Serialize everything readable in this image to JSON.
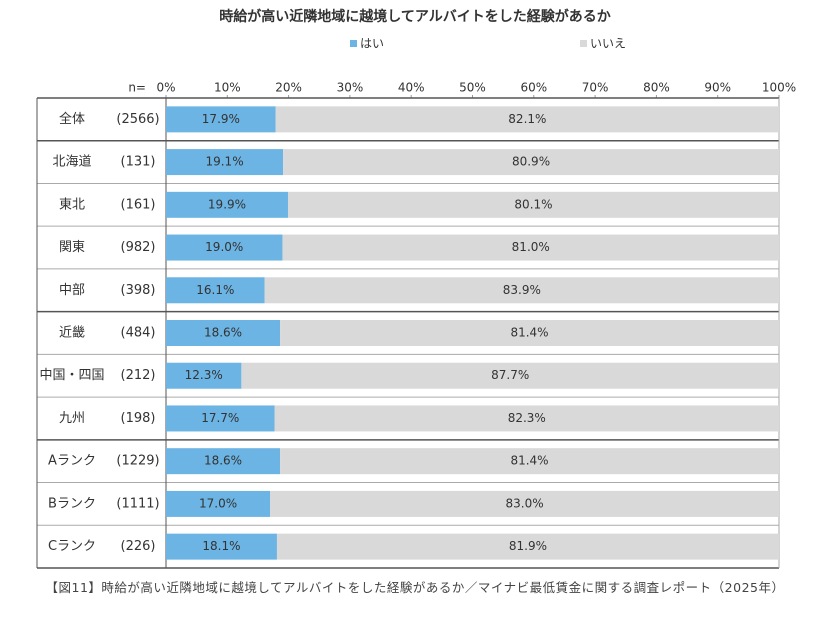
{
  "chart_data": {
    "type": "stacked-bar-horizontal",
    "title": "時給が高い近隣地域に越境してアルバイトをした経験があるか",
    "n_label": "n=",
    "categories": [
      "全体",
      "北海道",
      "東北",
      "関東",
      "中部",
      "近畿",
      "中国・四国",
      "九州",
      "Aランク",
      "Bランク",
      "Cランク"
    ],
    "sample_sizes": [
      "(2566)",
      "(131)",
      "(161)",
      "(982)",
      "(398)",
      "(484)",
      "(212)",
      "(198)",
      "(1229)",
      "(1111)",
      "(226)"
    ],
    "series": [
      {
        "name": "はい",
        "color": "#6cb4e4",
        "values": [
          17.9,
          19.1,
          19.9,
          19.0,
          16.1,
          18.6,
          12.3,
          17.7,
          18.6,
          17.0,
          18.1
        ],
        "value_labels": [
          "17.9%",
          "19.1%",
          "19.9%",
          "19.0%",
          "16.1%",
          "18.6%",
          "12.3%",
          "17.7%",
          "18.6%",
          "17.0%",
          "18.1%"
        ]
      },
      {
        "name": "いいえ",
        "color": "#d9d9d9",
        "values": [
          82.1,
          80.9,
          80.1,
          81.0,
          83.9,
          81.4,
          87.7,
          82.3,
          81.4,
          83.0,
          81.9
        ],
        "value_labels": [
          "82.1%",
          "80.9%",
          "80.1%",
          "81.0%",
          "83.9%",
          "81.4%",
          "87.7%",
          "82.3%",
          "81.4%",
          "83.0%",
          "81.9%"
        ]
      }
    ],
    "xlim": [
      0,
      100
    ],
    "xticks": [
      {
        "value": 0,
        "label": "0%"
      },
      {
        "value": 10,
        "label": "10%"
      },
      {
        "value": 20,
        "label": "20%"
      },
      {
        "value": 30,
        "label": "30%"
      },
      {
        "value": 40,
        "label": "40%"
      },
      {
        "value": 50,
        "label": "50%"
      },
      {
        "value": 60,
        "label": "60%"
      },
      {
        "value": 70,
        "label": "70%"
      },
      {
        "value": 80,
        "label": "80%"
      },
      {
        "value": 90,
        "label": "90%"
      },
      {
        "value": 100,
        "label": "100%"
      }
    ],
    "legend": "top",
    "caption": "【図11】時給が高い近隣地域に越境してアルバイトをした経験があるか／マイナビ最低賃金に関する調査レポート（2025年）"
  }
}
